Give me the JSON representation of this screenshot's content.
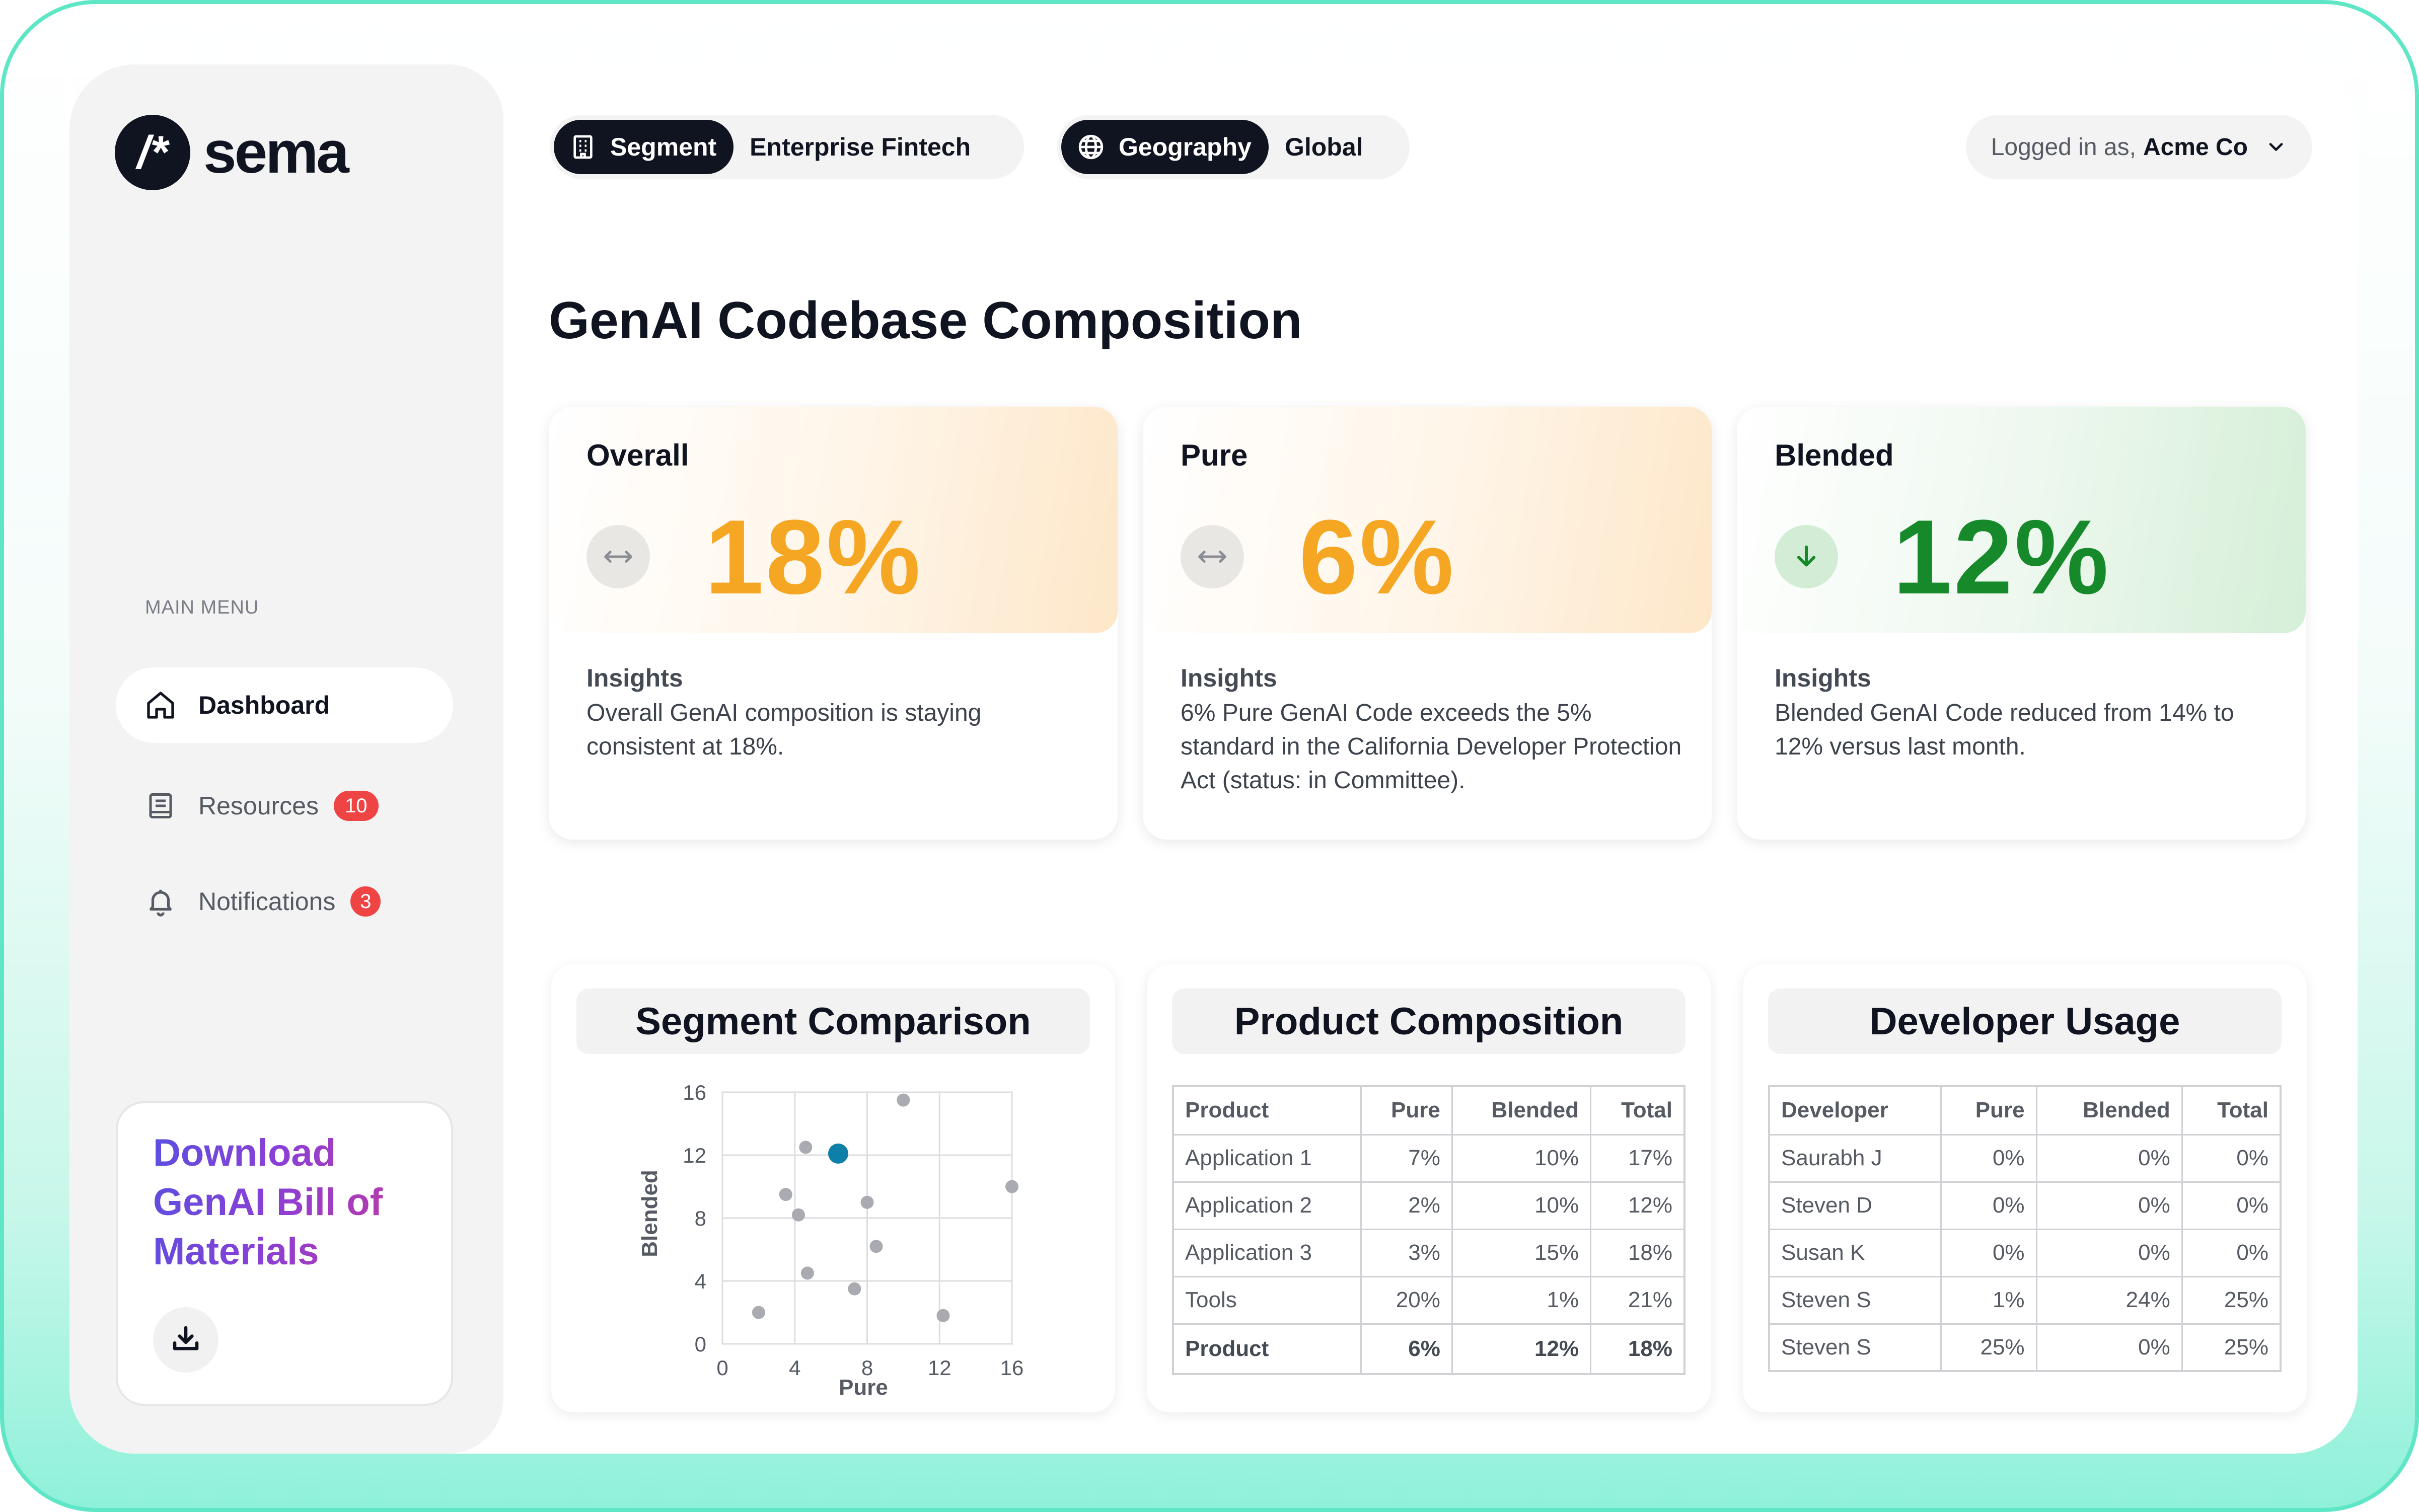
{
  "brand": {
    "name": "sema",
    "mark": "/*"
  },
  "sidebar": {
    "menu_title": "MAIN MENU",
    "items": [
      {
        "label": "Dashboard",
        "icon": "home-icon",
        "active": true
      },
      {
        "label": "Resources",
        "icon": "book-icon",
        "badge": "10"
      },
      {
        "label": "Notifications",
        "icon": "bell-icon",
        "badge": "3"
      }
    ],
    "download": {
      "title": "Download GenAI Bill of Materials",
      "icon": "download-icon"
    }
  },
  "filters": {
    "segment": {
      "label": "Segment",
      "value": "Enterprise Fintech",
      "icon": "building-icon"
    },
    "geography": {
      "label": "Geography",
      "value": "Global",
      "icon": "globe-icon"
    }
  },
  "user": {
    "prefix": "Logged in as,",
    "name": "Acme Co"
  },
  "page": {
    "title": "GenAI Codebase Composition"
  },
  "kpis": [
    {
      "label": "Overall",
      "value": "18%",
      "trend": "flat",
      "insights_title": "Insights",
      "insight": "Overall GenAI composition is staying consistent at 18%."
    },
    {
      "label": "Pure",
      "value": "6%",
      "trend": "flat",
      "insights_title": "Insights",
      "insight": "6% Pure GenAI Code exceeds the 5% standard in the California Developer Protection Act (status: in Committee)."
    },
    {
      "label": "Blended",
      "value": "12%",
      "trend": "down",
      "insights_title": "Insights",
      "insight": "Blended GenAI Code reduced from 14% to 12% versus last month."
    }
  ],
  "colors": {
    "accent_orange": "#f5a623",
    "accent_green": "#168a2a",
    "highlight_point": "#0e7fa8",
    "badge_red": "#ef4444"
  },
  "segment_comparison": {
    "title": "Segment Comparison",
    "chart_data": {
      "type": "scatter",
      "xlabel": "Pure",
      "ylabel": "Blended",
      "xlim": [
        0,
        16
      ],
      "ylim": [
        0,
        16
      ],
      "xticks": [
        "0",
        "4",
        "8",
        "12",
        "16"
      ],
      "yticks": [
        "0",
        "4",
        "8",
        "12",
        "16"
      ],
      "grid": true,
      "points": [
        {
          "x": 2,
          "y": 2
        },
        {
          "x": 3.5,
          "y": 9.5
        },
        {
          "x": 4.2,
          "y": 8.2
        },
        {
          "x": 4.6,
          "y": 12.5
        },
        {
          "x": 4.7,
          "y": 4.5
        },
        {
          "x": 7.3,
          "y": 3.5
        },
        {
          "x": 8,
          "y": 9
        },
        {
          "x": 8.5,
          "y": 6.2
        },
        {
          "x": 10,
          "y": 15.5
        },
        {
          "x": 12.2,
          "y": 1.8
        },
        {
          "x": 16,
          "y": 10
        }
      ],
      "highlight": {
        "x": 6.4,
        "y": 12.1
      }
    }
  },
  "product_composition": {
    "title": "Product Composition",
    "columns": [
      "Product",
      "Pure",
      "Blended",
      "Total"
    ],
    "rows": [
      [
        "Application 1",
        "7%",
        "10%",
        "17%"
      ],
      [
        "Application 2",
        "2%",
        "10%",
        "12%"
      ],
      [
        "Application 3",
        "3%",
        "15%",
        "18%"
      ],
      [
        "Tools",
        "20%",
        "1%",
        "21%"
      ]
    ],
    "total": [
      "Product",
      "6%",
      "12%",
      "18%"
    ]
  },
  "developer_usage": {
    "title": "Developer Usage",
    "columns": [
      "Developer",
      "Pure",
      "Blended",
      "Total"
    ],
    "rows": [
      [
        "Saurabh J",
        "0%",
        "0%",
        "0%"
      ],
      [
        "Steven D",
        "0%",
        "0%",
        "0%"
      ],
      [
        "Susan K",
        "0%",
        "0%",
        "0%"
      ],
      [
        "Steven S",
        "1%",
        "24%",
        "25%"
      ],
      [
        "Steven S",
        "25%",
        "0%",
        "25%"
      ]
    ]
  }
}
